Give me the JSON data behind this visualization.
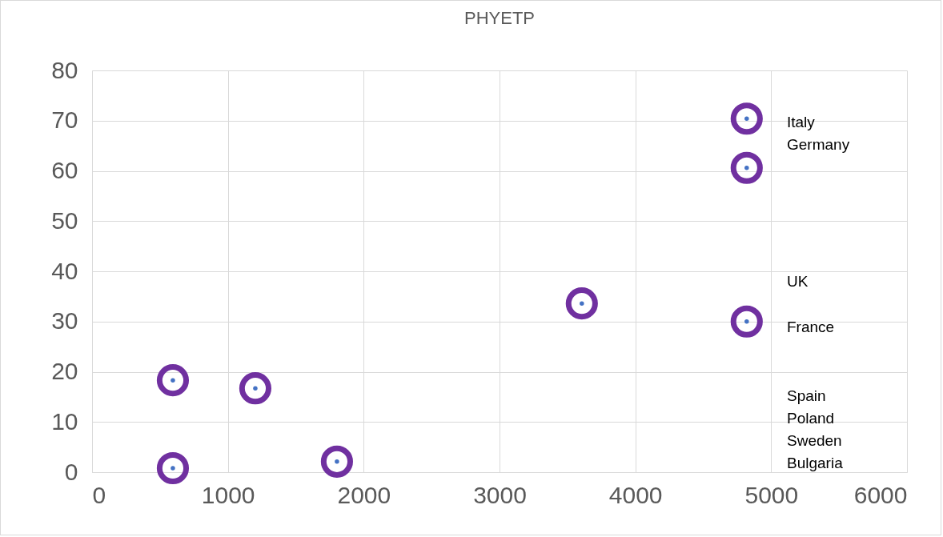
{
  "chart_data": {
    "type": "scatter",
    "title": "PHYETP",
    "x": [
      4820,
      4820,
      4820,
      3606,
      595,
      1202,
      595,
      1803
    ],
    "series": [
      {
        "color": "#7030a0",
        "values": [
          70.4,
          60.6,
          30.0,
          33.6,
          18.3,
          16.7,
          0.8,
          2.1
        ]
      }
    ],
    "xlim": [
      0,
      6000
    ],
    "xticks": [
      0,
      1000,
      2000,
      3000,
      4000,
      5000,
      6000
    ],
    "ylim": [
      0,
      80
    ],
    "yticks": [
      0,
      10,
      20,
      30,
      40,
      50,
      60,
      70,
      80
    ],
    "grid": true,
    "marker": "circle",
    "annotations": [
      "Italy",
      "Germany",
      "UK",
      "France",
      "Spain",
      "Poland",
      "Sweden",
      "Bulgaria"
    ]
  }
}
